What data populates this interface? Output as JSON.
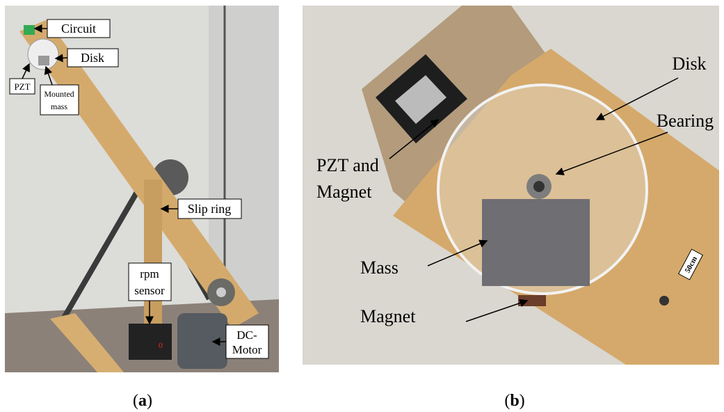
{
  "panel_a": {
    "labels": [
      {
        "lines": [
          "Circuit"
        ]
      },
      {
        "lines": [
          "Disk"
        ]
      },
      {
        "lines": [
          "PZT"
        ]
      },
      {
        "lines": [
          "Mounted",
          "mass"
        ]
      },
      {
        "lines": [
          "Slip ring"
        ]
      },
      {
        "lines": [
          "rpm",
          "sensor"
        ]
      },
      {
        "lines": [
          "DC-",
          "Motor"
        ]
      }
    ],
    "caption": {
      "open": "(",
      "letter": "a",
      "close": ")"
    }
  },
  "panel_b": {
    "labels": [
      {
        "lines": [
          "Disk"
        ]
      },
      {
        "lines": [
          "Bearing"
        ]
      },
      {
        "lines": [
          "PZT and",
          "Magnet"
        ]
      },
      {
        "lines": [
          "Mass"
        ]
      },
      {
        "lines": [
          "Magnet"
        ]
      }
    ],
    "scale_tag": "50cm",
    "caption": {
      "open": "(",
      "letter": "b",
      "close": ")"
    }
  }
}
